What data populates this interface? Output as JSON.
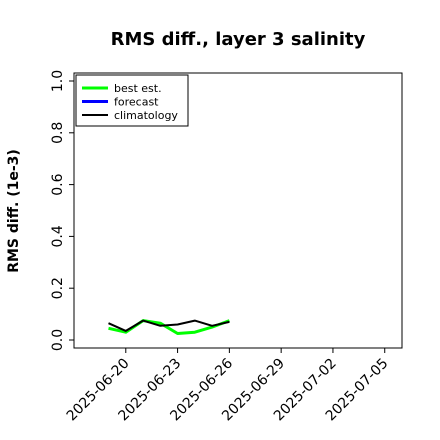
{
  "chart_data": {
    "type": "line",
    "title": "RMS diff., layer 3 salinity",
    "xlabel": "",
    "ylabel": "RMS diff. (1e-3)",
    "ylim": [
      0.0,
      1.0
    ],
    "yticks": [
      "0.0",
      "0.2",
      "0.4",
      "0.6",
      "0.8",
      "1.0"
    ],
    "xlim": [
      "2025-06-17",
      "2025-07-06"
    ],
    "xticks": [
      "2025-06-20",
      "2025-06-23",
      "2025-06-26",
      "2025-06-29",
      "2025-07-02",
      "2025-07-05"
    ],
    "highlighted_xtick": "2025-06-26",
    "highlight_color": "#008000",
    "grid": false,
    "legend_placement": "top-left",
    "series": [
      {
        "name": "best est.",
        "color": "#00ff00",
        "x": [
          "2025-06-19",
          "2025-06-20",
          "2025-06-21",
          "2025-06-22",
          "2025-06-23",
          "2025-06-24",
          "2025-06-25",
          "2025-06-26"
        ],
        "y": [
          0.045,
          0.03,
          0.075,
          0.065,
          0.025,
          0.03,
          0.05,
          0.075
        ]
      },
      {
        "name": "forecast",
        "color": "#0000ff",
        "x": [],
        "y": []
      },
      {
        "name": "climatology",
        "color": "#000000",
        "x": [
          "2025-06-19",
          "2025-06-20",
          "2025-06-21",
          "2025-06-22",
          "2025-06-23",
          "2025-06-24",
          "2025-06-25",
          "2025-06-26"
        ],
        "y": [
          0.065,
          0.035,
          0.075,
          0.055,
          0.06,
          0.075,
          0.055,
          0.07
        ]
      }
    ]
  }
}
